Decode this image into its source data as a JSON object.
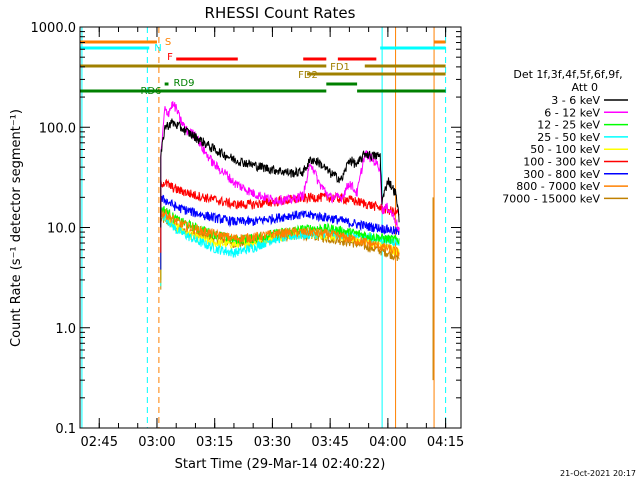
{
  "chart_data": {
    "type": "line",
    "title": "RHESSI Count Rates",
    "xlabel": "Start Time (29-Mar-14 02:40:22)",
    "ylabel": "Count Rate (s⁻¹ detector segment⁻¹)",
    "y_scale": "log",
    "ylim": [
      0.1,
      1000
    ],
    "xlim": [
      "02:40",
      "04:19"
    ],
    "x_ticks": [
      "02:45",
      "03:00",
      "03:15",
      "03:30",
      "03:45",
      "04:00",
      "04:15"
    ],
    "y_ticks": [
      "0.1",
      "1.0",
      "10.0",
      "100.0",
      "1000.0"
    ],
    "legend": {
      "header": [
        "Det 1f,3f,4f,5f,6f,9f,",
        "Att 0"
      ],
      "placement": "right"
    },
    "series": [
      {
        "name": "3 - 6 keV",
        "color": "#000000",
        "x": [
          "03:01",
          "03:02",
          "03:04",
          "03:06",
          "03:10",
          "03:15",
          "03:20",
          "03:25",
          "03:30",
          "03:35",
          "03:38",
          "03:40",
          "03:42",
          "03:45",
          "03:48",
          "03:50",
          "03:52",
          "03:54",
          "03:56",
          "03:58",
          "03:58.5",
          "04:00",
          "04:02",
          "04:03"
        ],
        "y": [
          50,
          100,
          112,
          100,
          80,
          60,
          48,
          42,
          38,
          35,
          36,
          48,
          45,
          35,
          30,
          48,
          42,
          55,
          52,
          52,
          18,
          30,
          22,
          12
        ]
      },
      {
        "name": "6 - 12 keV",
        "color": "#ff00ff",
        "x": [
          "03:01",
          "03:02",
          "03:03",
          "03:04",
          "03:05",
          "03:06",
          "03:08",
          "03:10",
          "03:12",
          "03:15",
          "03:18",
          "03:20",
          "03:25",
          "03:30",
          "03:35",
          "03:38",
          "03:40",
          "03:42",
          "03:45",
          "03:48",
          "03:50",
          "03:52",
          "03:54",
          "03:56",
          "03:58",
          "03:58.5",
          "04:00",
          "04:02",
          "04:03"
        ],
        "y": [
          50,
          150,
          140,
          170,
          155,
          120,
          90,
          85,
          60,
          42,
          34,
          28,
          22,
          19,
          19,
          21,
          45,
          28,
          20,
          20,
          28,
          22,
          55,
          48,
          40,
          15,
          16,
          12,
          9
        ]
      },
      {
        "name": "12 - 25 keV",
        "color": "#00ff00",
        "x": [
          "03:01",
          "03:02",
          "03:05",
          "03:10",
          "03:15",
          "03:20",
          "03:25",
          "03:30",
          "03:35",
          "03:40",
          "03:45",
          "03:50",
          "03:55",
          "04:00",
          "04:03"
        ],
        "y": [
          15,
          15,
          12,
          10,
          8.6,
          7.6,
          7.8,
          8.6,
          9.3,
          9.8,
          9.8,
          9.0,
          8.3,
          7.7,
          7.5
        ]
      },
      {
        "name": "25 - 50 keV",
        "color": "#00ffff",
        "x": [
          "03:01",
          "03:02",
          "03:05",
          "03:10",
          "03:15",
          "03:20",
          "03:25",
          "03:30",
          "03:35",
          "03:40",
          "03:45",
          "03:50",
          "03:55",
          "04:00",
          "04:03"
        ],
        "y": [
          13,
          13,
          9.5,
          7.5,
          6.2,
          5.6,
          6.3,
          7.6,
          8.2,
          8.6,
          8.8,
          8.4,
          8.0,
          7.4,
          7.2
        ]
      },
      {
        "name": "50 - 100 keV",
        "color": "#ffff00",
        "x": [
          "03:01",
          "03:02",
          "03:05",
          "03:10",
          "03:15",
          "03:20",
          "03:25",
          "03:30",
          "03:35",
          "03:40",
          "03:45",
          "03:50",
          "03:55",
          "04:00",
          "04:03"
        ],
        "y": [
          13,
          13,
          10,
          8.0,
          7.0,
          6.8,
          7.2,
          8.0,
          8.6,
          8.6,
          8.4,
          8.0,
          7.3,
          6.4,
          5.6
        ]
      },
      {
        "name": "100 - 300 keV",
        "color": "#ff0000",
        "x": [
          "03:01",
          "03:02",
          "03:05",
          "03:10",
          "03:15",
          "03:20",
          "03:25",
          "03:30",
          "03:35",
          "03:40",
          "03:45",
          "03:50",
          "03:55",
          "04:00",
          "04:03"
        ],
        "y": [
          28,
          28,
          24,
          21,
          19,
          17,
          17,
          18,
          19,
          20,
          20,
          19,
          17,
          15,
          14
        ]
      },
      {
        "name": "300 - 800 keV",
        "color": "#0000ff",
        "x": [
          "03:01",
          "03:02",
          "03:05",
          "03:10",
          "03:15",
          "03:20",
          "03:25",
          "03:30",
          "03:35",
          "03:40",
          "03:45",
          "03:50",
          "03:55",
          "04:00",
          "04:03"
        ],
        "y": [
          19,
          19,
          16,
          14,
          12.5,
          11.5,
          11.5,
          12.3,
          13.3,
          13.3,
          12.5,
          11.2,
          10.3,
          9.6,
          9.0
        ]
      },
      {
        "name": "800 - 7000 keV",
        "color": "#ff8000",
        "x": [
          "03:01",
          "03:02",
          "03:05",
          "03:10",
          "03:15",
          "03:20",
          "03:25",
          "03:30",
          "03:35",
          "03:40",
          "03:45",
          "03:50",
          "03:55",
          "04:00",
          "04:03"
        ],
        "y": [
          14,
          14,
          11.5,
          9.6,
          8.6,
          7.8,
          8.0,
          8.6,
          9.0,
          9.0,
          8.6,
          7.8,
          7.0,
          6.2,
          5.6
        ]
      },
      {
        "name": "7000 - 15000 keV",
        "color": "#c08000",
        "x": [
          "03:01",
          "03:02",
          "03:05",
          "03:10",
          "03:15",
          "03:20",
          "03:25",
          "03:30",
          "03:35",
          "03:40",
          "03:45",
          "03:50",
          "03:55",
          "04:00",
          "04:03"
        ],
        "y": [
          12,
          12,
          10,
          8.6,
          7.8,
          7.0,
          7.1,
          7.8,
          8.4,
          8.4,
          7.8,
          7.2,
          6.4,
          5.6,
          5.0
        ]
      }
    ],
    "flags": [
      {
        "label": "S",
        "color": "#ff8000",
        "segments": [
          [
            "02:40",
            "03:00"
          ],
          [
            "04:12",
            "04:15"
          ]
        ]
      },
      {
        "label": "N",
        "color": "#00ffff",
        "segments": [
          [
            "02:40",
            "02:58"
          ],
          [
            "03:58",
            "04:15"
          ]
        ]
      },
      {
        "label": "F",
        "color": "#ff0000",
        "segments": [
          [
            "03:05",
            "03:21"
          ],
          [
            "03:38",
            "03:44"
          ],
          [
            "03:47",
            "03:57"
          ]
        ]
      },
      {
        "label": "FD1",
        "color": "#a08000",
        "segments": [
          [
            "02:40",
            "03:44"
          ],
          [
            "03:54",
            "04:15"
          ]
        ]
      },
      {
        "label": "FD2",
        "color": "#a08000",
        "segments": [
          [
            "03:39",
            "04:15"
          ]
        ]
      },
      {
        "label": "RD9",
        "color": "#008000",
        "segments": [
          [
            "03:02",
            "03:03"
          ],
          [
            "03:44",
            "03:52"
          ]
        ]
      },
      {
        "label": "RD6",
        "color": "#008000",
        "segments": [
          [
            "02:40",
            "03:44"
          ],
          [
            "03:52",
            "04:15"
          ]
        ]
      }
    ],
    "vertical_lines": [
      {
        "time": "02:40.5",
        "color": "#00ffff",
        "style": "solid"
      },
      {
        "time": "02:57.5",
        "color": "#00ffff",
        "style": "dashed"
      },
      {
        "time": "03:00.5",
        "color": "#ff8000",
        "style": "dashed"
      },
      {
        "time": "03:58.5",
        "color": "#00ffff",
        "style": "solid"
      },
      {
        "time": "04:02",
        "color": "#ff8000",
        "style": "solid"
      },
      {
        "time": "04:12",
        "color": "#ff8000",
        "style": "solid"
      },
      {
        "time": "04:15",
        "color": "#00ffff",
        "style": "dashed"
      }
    ]
  },
  "footer": {
    "timestamp": "21-Oct-2021 20:17"
  }
}
